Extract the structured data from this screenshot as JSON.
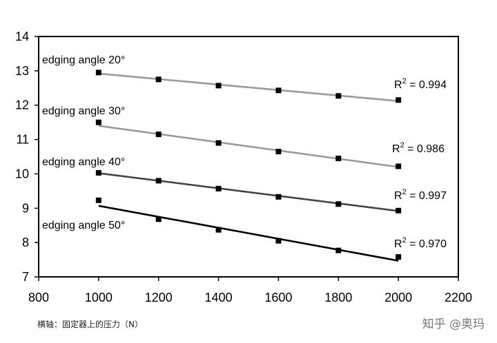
{
  "chart_data": {
    "type": "scatter",
    "x": [
      1000,
      1200,
      1400,
      1600,
      1800,
      2000
    ],
    "xlim": [
      800,
      2200
    ],
    "ylim": [
      7,
      14
    ],
    "xticks": [
      800,
      1000,
      1200,
      1400,
      1600,
      1800,
      2000,
      2200
    ],
    "yticks": [
      7,
      8,
      9,
      10,
      11,
      12,
      13,
      14
    ],
    "xlabel": "横轴：固定器上的压力（N）",
    "ylabel": "",
    "grid": false,
    "series": [
      {
        "name": "edging angle 20°",
        "values": [
          12.95,
          12.75,
          12.57,
          12.43,
          12.27,
          12.15
        ],
        "trend": [
          12.92,
          12.12
        ],
        "r2": "0.994",
        "color": "#999999"
      },
      {
        "name": "edging angle 30°",
        "values": [
          11.5,
          11.15,
          10.9,
          10.65,
          10.45,
          10.22
        ],
        "trend": [
          11.4,
          10.2
        ],
        "r2": "0.986",
        "color": "#999999"
      },
      {
        "name": "edging angle 40°",
        "values": [
          10.03,
          9.8,
          9.57,
          9.33,
          9.12,
          8.93
        ],
        "trend": [
          10.02,
          8.92
        ],
        "r2": "0.997",
        "color": "#444444"
      },
      {
        "name": "edging angle 50°",
        "values": [
          9.23,
          8.68,
          8.37,
          8.05,
          7.77,
          7.58
        ],
        "trend": [
          9.07,
          7.47
        ],
        "r2": "0.970",
        "color": "#000000"
      }
    ]
  },
  "watermark": "知乎 @奥玛"
}
